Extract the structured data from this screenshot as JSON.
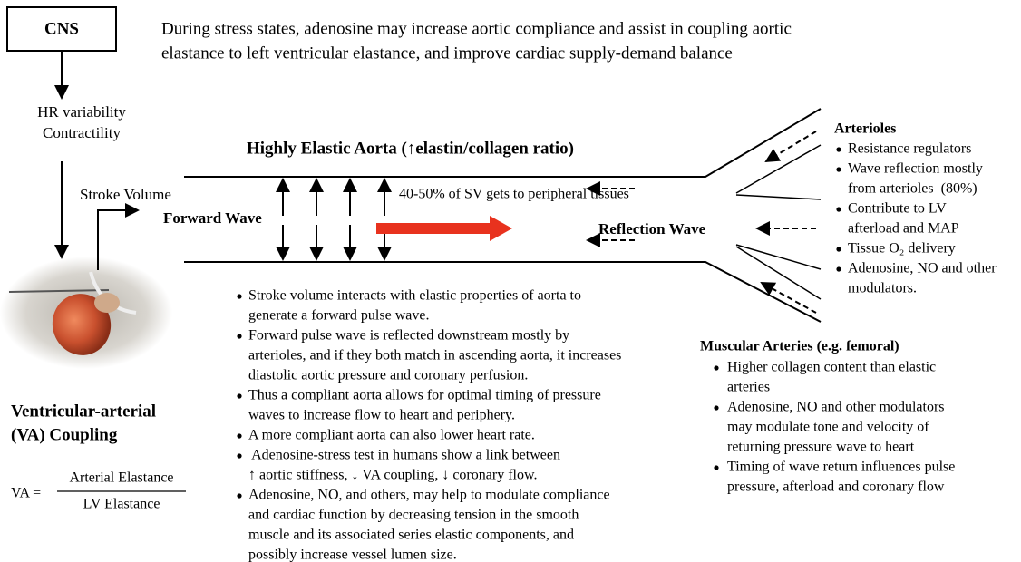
{
  "cns_box": {
    "label": "CNS"
  },
  "header": {
    "lines": [
      "During stress states, adenosine may increase aortic compliance and assist in coupling aortic",
      "elastance to left ventricular elastance, and improve cardiac supply-demand balance"
    ]
  },
  "cns_outputs": {
    "lines": [
      "HR variability",
      "Contractility"
    ]
  },
  "stroke_volume": "Stroke Volume",
  "forward_wave": "Forward Wave",
  "aorta_title": "Highly Elastic Aorta (↑elastin/collagen ratio)",
  "sv_note": "40-50% of SV gets to peripheral tissues",
  "reflection_wave": "Reflection Wave",
  "arterioles": {
    "title": "Arterioles",
    "items": [
      [
        "Resistance regulators"
      ],
      [
        "Wave reflection mostly",
        "from arterioles  (80%)"
      ],
      [
        "Contribute to LV",
        "afterload and MAP"
      ],
      [
        "Tissue O₂ delivery"
      ],
      [
        "Adenosine, NO and other",
        "modulators."
      ]
    ]
  },
  "muscular_arteries": {
    "title": "Muscular Arteries (e.g. femoral)",
    "items": [
      [
        "Higher collagen content than elastic",
        "arteries"
      ],
      [
        "Adenosine, NO and other modulators",
        "may modulate tone and velocity of",
        "returning pressure wave to heart"
      ],
      [
        "Timing of wave return influences pulse",
        "pressure, afterload and coronary flow"
      ]
    ]
  },
  "notes": {
    "items": [
      [
        "Stroke volume interacts with elastic properties of aorta to",
        "generate a forward pulse wave."
      ],
      [
        "Forward pulse wave is reflected downstream mostly by",
        "arterioles, and if they both match in ascending aorta, it increases",
        "diastolic aortic pressure and coronary perfusion."
      ],
      [
        "Thus a compliant aorta allows for optimal timing of pressure",
        "waves to increase flow to heart and periphery."
      ],
      [
        "A more compliant aorta can also lower heart rate."
      ],
      [
        " Adenosine-stress test in humans show a link between",
        "↑ aortic stiffness, ↓ VA coupling, ↓ coronary flow."
      ],
      [
        "Adenosine, NO, and others, may help to modulate compliance",
        "and cardiac function by decreasing tension in the smooth",
        "muscle and its associated series elastic components, and",
        "possibly increase vessel lumen size."
      ]
    ]
  },
  "coupling": {
    "title_lines": [
      "Ventricular-arterial",
      "(VA) Coupling"
    ],
    "formula": {
      "lhs": "VA =",
      "numerator": "Arterial Elastance",
      "denominator": "LV Elastance"
    }
  }
}
